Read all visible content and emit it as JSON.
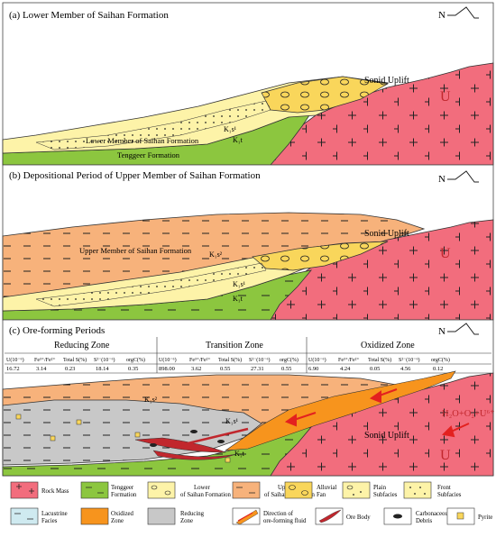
{
  "panels": {
    "a": {
      "title": "(a) Lower Member of Saihan Formation",
      "north": "N",
      "labels": {
        "uplift": "Sonid Uplift",
        "u": "U",
        "k1s1": "K₁s¹",
        "k1t": "K₁t",
        "lower_member": "Lower Member of Saihan Formation",
        "tenggeer": "Tenggeer Formation"
      }
    },
    "b": {
      "title": "(b) Depositional Period of Upper Member of Saihan Formation",
      "north": "N",
      "labels": {
        "uplift": "Sonid Uplift",
        "u": "U",
        "k1s2": "K₁s²",
        "k1s1": "K₁s¹",
        "k1t": "K₁t",
        "upper_member": "Upper Member of Saihan Formation"
      }
    },
    "c": {
      "title": "(c) Ore-forming Periods",
      "north": "N",
      "labels": {
        "uplift": "Sonid Uplift",
        "u": "U",
        "k1s2": "K₁s²",
        "k1s1": "K₁s¹",
        "k1t": "K₁t",
        "fluid": "H₂O+O₂+U⁶⁺"
      }
    }
  },
  "zones": [
    {
      "name": "Reducing Zone",
      "headers": [
        "U(10⁻⁶)",
        "Fe³⁺/Fe²⁺",
        "Total S(%)",
        "S²⁻(10⁻⁶)",
        "orgC(%)"
      ],
      "values": [
        "16.72",
        "3.14",
        "0.23",
        "18.14",
        "0.35"
      ]
    },
    {
      "name": "Transition Zone",
      "headers": [
        "U(10⁻⁶)",
        "Fe³⁺/Fe²⁺",
        "Total S(%)",
        "S²⁻(10⁻⁶)",
        "orgC(%)"
      ],
      "values": [
        "898.00",
        "3.62",
        "0.55",
        "27.31",
        "0.55"
      ]
    },
    {
      "name": "Oxidized Zone",
      "headers": [
        "U(10⁻⁶)",
        "Fe³⁺/Fe²⁺",
        "Total S(%)",
        "S²⁻(10⁻⁶)",
        "orgC(%)"
      ],
      "values": [
        "6.90",
        "4.24",
        "0.05",
        "4.56",
        "0.12"
      ]
    }
  ],
  "legend": [
    {
      "line1": "Rock Mass",
      "line2": ""
    },
    {
      "line1": "Tenggeer",
      "line2": "Formation"
    },
    {
      "line1": "Lower",
      "line2": "of Saihan Formation"
    },
    {
      "line1": "Upper",
      "line2": "of Saihan Formation"
    },
    {
      "line1": "Alluvial",
      "line2": "Fan"
    },
    {
      "line1": "Plain",
      "line2": "Subfacies"
    },
    {
      "line1": "Front",
      "line2": "Subfacies"
    },
    {
      "line1": "Lacustrine",
      "line2": "Facies"
    },
    {
      "line1": "Oxidized",
      "line2": "Zone"
    },
    {
      "line1": "Reducing",
      "line2": "Zone"
    },
    {
      "line1": "Direction of",
      "line2": "ore-forming fluid"
    },
    {
      "line1": "Ore Body",
      "line2": ""
    },
    {
      "line1": "Carbonaceous",
      "line2": "Debris"
    },
    {
      "line1": "Pyrite",
      "line2": ""
    }
  ],
  "colors": {
    "rock_mass": "#f26d7d",
    "tenggeer": "#8cc63f",
    "lower_saihan": "#fdf3a8",
    "upper_saihan": "#f7b27b",
    "alluvial_fan": "#f9d65b",
    "lacustrine": "#cfeaf0",
    "oxidized": "#f7941d",
    "reducing": "#c8c8c8",
    "ore_body": "#c1272d",
    "uplift_text": "#c1272d"
  }
}
